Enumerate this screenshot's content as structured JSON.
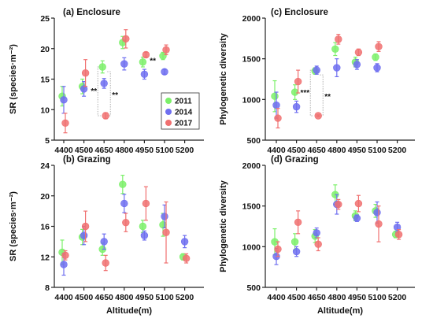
{
  "chart_data": [
    {
      "type": "scatter",
      "title": "(a) Enclosure",
      "ylabel": "SR (species·m⁻²)",
      "xlabel": "",
      "categories": [
        "4400",
        "4500",
        "4650",
        "4800",
        "4950",
        "5100",
        "5200"
      ],
      "ylim": [
        5,
        25
      ],
      "yticks": [
        5,
        10,
        15,
        20,
        25
      ],
      "series": [
        {
          "name": "2011",
          "values": [
            12.2,
            13.8,
            17.0,
            21.0,
            17.8,
            18.8,
            null
          ],
          "err": [
            1.6,
            1.2,
            1.0,
            1.0,
            0.8,
            0.6,
            null
          ]
        },
        {
          "name": "2014",
          "values": [
            11.6,
            13.4,
            14.3,
            17.5,
            15.8,
            16.2,
            null
          ],
          "err": [
            2.2,
            1.2,
            0.8,
            1.0,
            0.8,
            0.4,
            null
          ]
        },
        {
          "name": "2017",
          "values": [
            7.8,
            16.0,
            9.0,
            21.6,
            19.0,
            19.8,
            null
          ],
          "err": [
            1.6,
            2.2,
            0.5,
            1.5,
            0.4,
            0.8,
            null
          ]
        }
      ],
      "significance": [
        {
          "category": "4650",
          "labels": [
            "**",
            "**"
          ]
        },
        {
          "category": "5100",
          "labels": [
            "**"
          ]
        }
      ],
      "legend": {
        "position": "inside-right",
        "entries": [
          "2011",
          "2014",
          "2017"
        ]
      }
    },
    {
      "type": "scatter",
      "title": "(c) Enclosure",
      "ylabel": "Phylogenetic diversity",
      "xlabel": "",
      "categories": [
        "4400",
        "4500",
        "4650",
        "4800",
        "4950",
        "5100",
        "5200"
      ],
      "ylim": [
        500,
        2000
      ],
      "yticks": [
        500,
        1000,
        1500,
        2000
      ],
      "series": [
        {
          "name": "2011",
          "values": [
            1040,
            1090,
            1350,
            1620,
            1460,
            1520,
            null
          ],
          "err": [
            190,
            90,
            40,
            80,
            60,
            40,
            null
          ]
        },
        {
          "name": "2014",
          "values": [
            930,
            910,
            1360,
            1390,
            1430,
            1390,
            null
          ],
          "err": [
            160,
            70,
            50,
            110,
            60,
            50,
            null
          ]
        },
        {
          "name": "2017",
          "values": [
            770,
            1220,
            800,
            1740,
            1580,
            1650,
            null
          ],
          "err": [
            120,
            140,
            10,
            60,
            40,
            60,
            null
          ]
        }
      ],
      "significance": [
        {
          "category": "4650",
          "labels": [
            "***",
            "**"
          ]
        }
      ]
    },
    {
      "type": "scatter",
      "title": "(b) Grazing",
      "ylabel": "SR (species·m⁻²)",
      "xlabel": "Altitude(m)",
      "categories": [
        "4400",
        "4500",
        "4650",
        "4800",
        "4950",
        "5100",
        "5200"
      ],
      "ylim": [
        8,
        24
      ],
      "yticks": [
        8,
        12,
        16,
        20,
        24
      ],
      "series": [
        {
          "name": "2011",
          "values": [
            12.6,
            14.6,
            13.0,
            21.5,
            16.0,
            16.2,
            12.0
          ],
          "err": [
            1.6,
            1.0,
            0.8,
            1.2,
            0.8,
            1.5,
            0.4
          ]
        },
        {
          "name": "2014",
          "values": [
            11.0,
            14.8,
            14.0,
            19.0,
            14.8,
            17.3,
            14.0
          ],
          "err": [
            1.4,
            1.2,
            1.0,
            1.2,
            0.6,
            1.5,
            0.8
          ]
        },
        {
          "name": "2017",
          "values": [
            12.2,
            16.0,
            11.2,
            16.5,
            19.0,
            15.2,
            11.8
          ],
          "err": [
            0.6,
            2.0,
            1.0,
            1.2,
            2.2,
            4.0,
            0.6
          ]
        }
      ]
    },
    {
      "type": "scatter",
      "title": "(d) Grazing",
      "ylabel": "Phylogenetic diversity",
      "xlabel": "Altitude(m)",
      "categories": [
        "4400",
        "4500",
        "4650",
        "4800",
        "4950",
        "5100",
        "5200"
      ],
      "ylim": [
        500,
        2000
      ],
      "yticks": [
        500,
        1000,
        1500,
        2000
      ],
      "series": [
        {
          "name": "2011",
          "values": [
            1060,
            1060,
            1130,
            1640,
            1380,
            1440,
            1150
          ],
          "err": [
            160,
            100,
            80,
            120,
            60,
            80,
            40
          ]
        },
        {
          "name": "2014",
          "values": [
            880,
            940,
            1170,
            1520,
            1350,
            1420,
            1240
          ],
          "err": [
            100,
            60,
            60,
            120,
            40,
            130,
            60
          ]
        },
        {
          "name": "2017",
          "values": [
            970,
            1300,
            1030,
            1520,
            1530,
            1280,
            1150
          ],
          "err": [
            90,
            140,
            80,
            60,
            100,
            220,
            60
          ]
        }
      ]
    }
  ],
  "colors": {
    "2011": "#7cf06a",
    "2014": "#6f6ff0",
    "2017": "#f07070",
    "axis": "#222222"
  }
}
